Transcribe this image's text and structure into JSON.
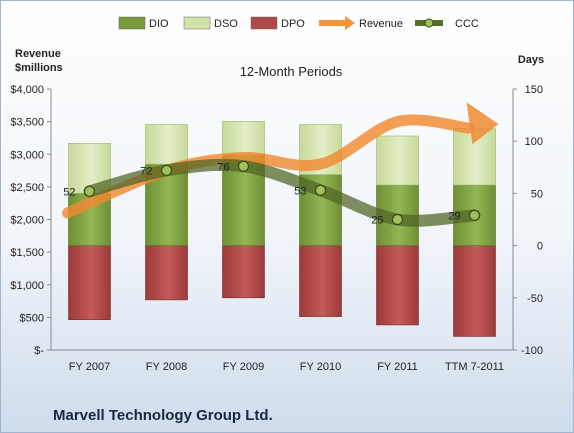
{
  "chart_data": {
    "type": "bar",
    "title": "12-Month Periods",
    "ylabel_left": "Revenue $millions",
    "ylabel_right": "Days",
    "left_axis": {
      "min": 0,
      "max": 4000,
      "ticks": [
        "$-",
        "$500",
        "$1,000",
        "$1,500",
        "$2,000",
        "$2,500",
        "$3,000",
        "$3,500",
        "$4,000"
      ]
    },
    "right_axis": {
      "min": -100,
      "max": 150,
      "ticks": [
        "-100",
        "-50",
        "0",
        "50",
        "100",
        "150"
      ]
    },
    "categories": [
      "FY 2007",
      "FY 2008",
      "FY 2009",
      "FY 2010",
      "FY 2011",
      "TTM 7-2011"
    ],
    "legend": [
      {
        "name": "DIO",
        "color": "#7a9a3c"
      },
      {
        "name": "DSO",
        "color": "#d2e3a8"
      },
      {
        "name": "DPO",
        "color": "#b04a4a"
      },
      {
        "name": "Revenue",
        "color": "#f0953e"
      },
      {
        "name": "CCC",
        "color": "#5b6e2a"
      }
    ],
    "series": [
      {
        "name": "DIO",
        "axis": "right",
        "values": [
          50,
          78,
          87,
          68,
          58,
          58
        ]
      },
      {
        "name": "DSO",
        "axis": "right",
        "values": [
          48,
          38,
          32,
          48,
          47,
          54
        ]
      },
      {
        "name": "DPO",
        "axis": "right",
        "values": [
          -71,
          -52,
          -50,
          -68,
          -76,
          -87
        ]
      },
      {
        "name": "Revenue",
        "axis": "left",
        "values": [
          2100,
          2750,
          2950,
          2850,
          3500,
          3400
        ]
      },
      {
        "name": "CCC",
        "axis": "right",
        "values": [
          52,
          72,
          76,
          53,
          25,
          29
        ],
        "labels": [
          "52",
          "72",
          "76",
          "53",
          "25",
          "29"
        ]
      }
    ],
    "grid": false,
    "legend_position": "top"
  },
  "footer": {
    "company": "Marvell Technology Group Ltd."
  }
}
